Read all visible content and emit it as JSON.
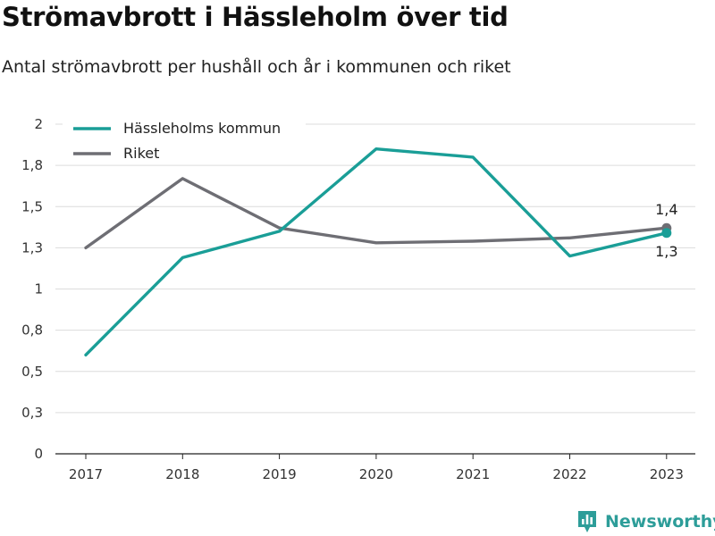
{
  "title": "Strömavbrott i Hässleholm över tid",
  "subtitle": "Antal strömavbrott per hushåll och år i kommunen och riket",
  "brand": {
    "name": "Newsworthy",
    "icon": "bar-chart-logo-icon",
    "color": "#2d9d99"
  },
  "chart_data": {
    "type": "line",
    "x": [
      2017,
      2018,
      2019,
      2020,
      2021,
      2022,
      2023
    ],
    "ylim": [
      0,
      2
    ],
    "yticks": [
      0,
      0.25,
      0.5,
      0.75,
      1,
      1.25,
      1.5,
      1.75,
      2
    ],
    "ytick_labels": [
      "0",
      "0,3",
      "0,5",
      "0,8",
      "1",
      "1,3",
      "1,5",
      "1,8",
      "2"
    ],
    "xtick_labels": [
      "2017",
      "2018",
      "2019",
      "2020",
      "2021",
      "2022",
      "2023"
    ],
    "grid": true,
    "legend_position": "top-left",
    "series": [
      {
        "name": "Hässleholms kommun",
        "color": "#1a9e97",
        "values": [
          0.6,
          1.19,
          1.35,
          1.85,
          1.8,
          1.2,
          1.34
        ],
        "end_label": "1,3"
      },
      {
        "name": "Riket",
        "color": "#6e6e74",
        "values": [
          1.25,
          1.67,
          1.37,
          1.28,
          1.29,
          1.31,
          1.37
        ],
        "end_label": "1,4"
      }
    ]
  }
}
